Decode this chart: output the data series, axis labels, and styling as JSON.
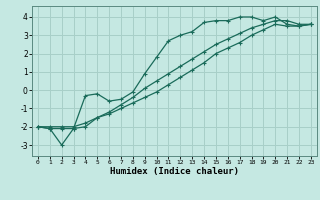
{
  "xlabel": "Humidex (Indice chaleur)",
  "bg_color": "#c5e8e2",
  "grid_color": "#a8cfc8",
  "line_color": "#1a6b5a",
  "xlim": [
    -0.5,
    23.5
  ],
  "ylim": [
    -3.6,
    4.6
  ],
  "xticks": [
    0,
    1,
    2,
    3,
    4,
    5,
    6,
    7,
    8,
    9,
    10,
    11,
    12,
    13,
    14,
    15,
    16,
    17,
    18,
    19,
    20,
    21,
    22,
    23
  ],
  "yticks": [
    -3,
    -2,
    -1,
    0,
    1,
    2,
    3,
    4
  ],
  "line1_x": [
    0,
    1,
    2,
    3,
    4,
    5,
    6,
    7,
    8,
    9,
    10,
    11,
    12,
    13,
    14,
    15,
    16,
    17,
    18,
    19,
    20,
    21,
    22,
    23
  ],
  "line1_y": [
    -2.0,
    -2.1,
    -3.0,
    -2.1,
    -0.3,
    -0.2,
    -0.6,
    -0.5,
    -0.1,
    0.9,
    1.8,
    2.7,
    3.0,
    3.2,
    3.7,
    3.8,
    3.8,
    4.0,
    4.0,
    3.8,
    4.0,
    3.6,
    3.5,
    3.6
  ],
  "line2_x": [
    0,
    1,
    2,
    3,
    4,
    5,
    6,
    7,
    8,
    9,
    10,
    11,
    12,
    13,
    14,
    15,
    16,
    17,
    18,
    19,
    20,
    21,
    22,
    23
  ],
  "line2_y": [
    -2.0,
    -2.1,
    -2.1,
    -2.1,
    -2.0,
    -1.5,
    -1.2,
    -0.8,
    -0.4,
    0.1,
    0.5,
    0.9,
    1.3,
    1.7,
    2.1,
    2.5,
    2.8,
    3.1,
    3.4,
    3.6,
    3.8,
    3.8,
    3.6,
    3.6
  ],
  "line3_x": [
    0,
    1,
    2,
    3,
    4,
    5,
    6,
    7,
    8,
    9,
    10,
    11,
    12,
    13,
    14,
    15,
    16,
    17,
    18,
    19,
    20,
    21,
    22,
    23
  ],
  "line3_y": [
    -2.0,
    -2.0,
    -2.0,
    -2.0,
    -1.8,
    -1.5,
    -1.3,
    -1.0,
    -0.7,
    -0.4,
    -0.1,
    0.3,
    0.7,
    1.1,
    1.5,
    2.0,
    2.3,
    2.6,
    3.0,
    3.3,
    3.6,
    3.5,
    3.5,
    3.6
  ]
}
